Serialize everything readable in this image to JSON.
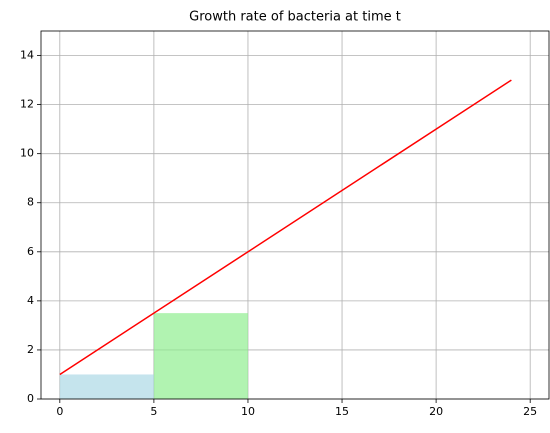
{
  "chart_data": {
    "type": "line",
    "title": "Growth rate of bacteria at time t",
    "x": [
      0,
      24
    ],
    "values": [
      1,
      13
    ],
    "color": "#ff0000",
    "rectangles": [
      {
        "x": [
          0,
          5
        ],
        "value": 1,
        "color": "#add8e6"
      },
      {
        "x": [
          5,
          10
        ],
        "value": 3.5,
        "color": "#90ee90"
      }
    ],
    "xlim": [
      -1,
      26
    ],
    "xticks": [
      0,
      5,
      10,
      15,
      20,
      25
    ],
    "ylim": [
      0,
      15
    ],
    "yticks": [
      0,
      2,
      4,
      6,
      8,
      10,
      12,
      14
    ],
    "grid": true
  }
}
